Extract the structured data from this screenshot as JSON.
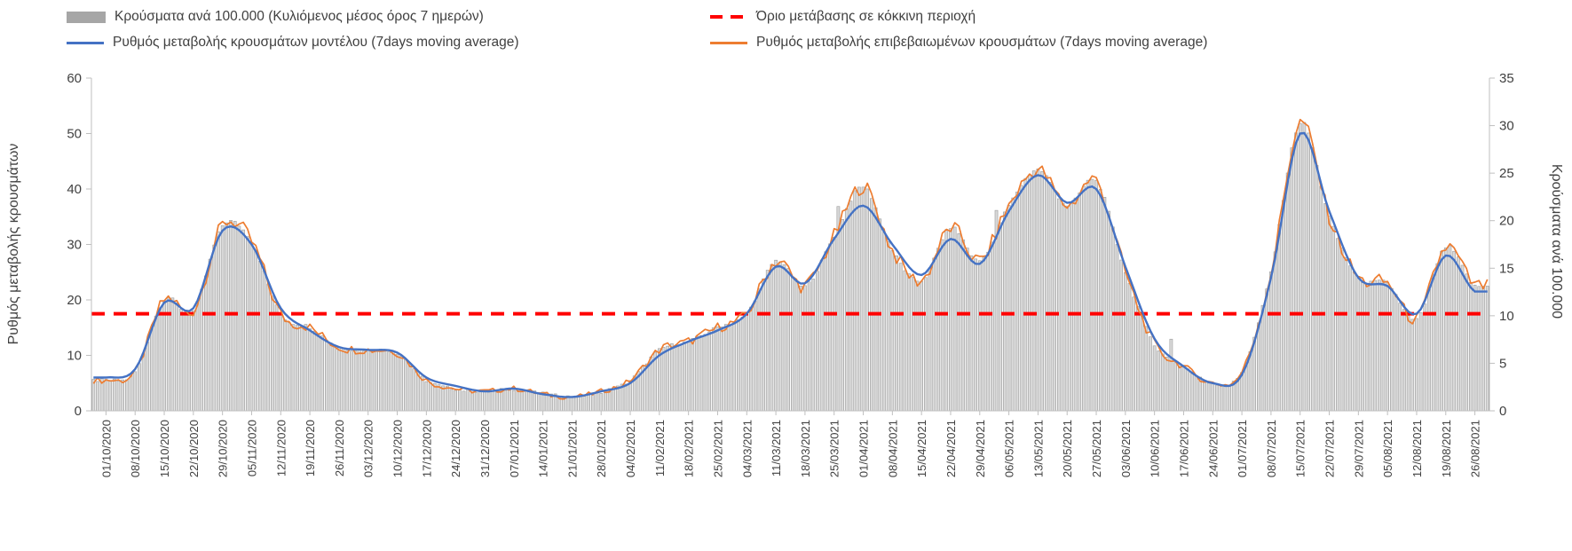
{
  "chart_data": {
    "type": "combo",
    "title": "",
    "sampling_note": "series values estimated at the weekly x-axis tick labels; bars in the figure are daily 7-day rolling averages",
    "categories": [
      "01/10/2020",
      "08/10/2020",
      "15/10/2020",
      "22/10/2020",
      "29/10/2020",
      "05/11/2020",
      "12/11/2020",
      "19/11/2020",
      "26/11/2020",
      "03/12/2020",
      "10/12/2020",
      "17/12/2020",
      "24/12/2020",
      "31/12/2020",
      "07/01/2021",
      "14/01/2021",
      "21/01/2021",
      "28/01/2021",
      "04/02/2021",
      "11/02/2021",
      "18/02/2021",
      "25/02/2021",
      "04/03/2021",
      "11/03/2021",
      "18/03/2021",
      "25/03/2021",
      "01/04/2021",
      "08/04/2021",
      "15/04/2021",
      "22/04/2021",
      "29/04/2021",
      "06/05/2021",
      "13/05/2021",
      "20/05/2021",
      "27/05/2021",
      "03/06/2021",
      "10/06/2021",
      "17/06/2021",
      "24/06/2021",
      "01/07/2021",
      "08/07/2021",
      "15/07/2021",
      "22/07/2021",
      "29/07/2021",
      "05/08/2021",
      "12/08/2021",
      "19/08/2021",
      "26/08/2021"
    ],
    "series": [
      {
        "name": "Κρούσματα ανά 100.000 (Κυλιόμενος μέσος όρος 7 ημερών)",
        "type": "bar",
        "axis": "right",
        "color": "#a6a6a6",
        "values": [
          3.2,
          4.1,
          11.7,
          10.5,
          19.5,
          17.8,
          10.2,
          8.8,
          6.7,
          6.4,
          6.1,
          3.2,
          2.3,
          2,
          2.3,
          1.8,
          1.5,
          2,
          3.2,
          6.4,
          7.3,
          8.8,
          10.2,
          15.8,
          13.1,
          18.4,
          23.6,
          16.9,
          13.7,
          19.3,
          15.8,
          21.6,
          25.4,
          21.6,
          24.2,
          14.6,
          7,
          4.7,
          2.9,
          4.1,
          14.6,
          30.3,
          20.4,
          14,
          13.4,
          9.6,
          17.2,
          13.1
        ]
      },
      {
        "name": "Ρυθμός μεταβολής κρουσμάτων μοντέλου (7days moving average)",
        "type": "line",
        "axis": "left",
        "color": "#4472c4",
        "values": [
          6,
          7.5,
          19.5,
          18.5,
          32.5,
          30,
          18.5,
          14.5,
          11.5,
          11,
          10.5,
          6,
          4.5,
          3.5,
          4,
          3,
          2.5,
          3.5,
          5,
          10,
          12.5,
          14.5,
          17.5,
          26,
          23,
          31,
          37,
          30,
          24.5,
          31,
          26.5,
          36,
          42.5,
          37.5,
          40,
          26,
          13,
          8,
          5,
          6.5,
          24,
          50,
          36,
          24,
          22.5,
          17.5,
          28,
          21.5
        ]
      },
      {
        "name": "Ρυθμός μεταβολής επιβεβαιωμένων κρουσμάτων (7days moving average)",
        "type": "line",
        "axis": "left",
        "color": "#ed7d31",
        "values": [
          5.5,
          7,
          20,
          18,
          33.5,
          30.5,
          17.5,
          15,
          11.5,
          11,
          10.5,
          5.5,
          4,
          3.5,
          4,
          3,
          2.5,
          3.5,
          5.5,
          11,
          12.5,
          15,
          17.5,
          27,
          22.5,
          31.5,
          40.5,
          29,
          23.5,
          33,
          27,
          37,
          43.5,
          37,
          41.5,
          25,
          12,
          8,
          5,
          7,
          25,
          52,
          35,
          24,
          23,
          16.5,
          29.5,
          22.5
        ]
      }
    ],
    "threshold": {
      "name": "Όριο μετάβασης σε κόκκινη περιοχή",
      "axis": "left",
      "value": 17.5,
      "right_axis_equivalent": 10,
      "color": "#ff0000",
      "style": "dashed"
    },
    "axes": {
      "left": {
        "label": "Ρυθμός μεταβολής κρουσμάτων",
        "min": 0,
        "max": 60,
        "ticks": [
          0,
          10,
          20,
          30,
          40,
          50,
          60
        ]
      },
      "right": {
        "label": "Κρούσματα ανά 100.000",
        "min": 0,
        "max": 35,
        "ticks": [
          0,
          5,
          10,
          15,
          20,
          25,
          30,
          35
        ]
      }
    },
    "legend": {
      "position": "top"
    },
    "grid": "off"
  }
}
